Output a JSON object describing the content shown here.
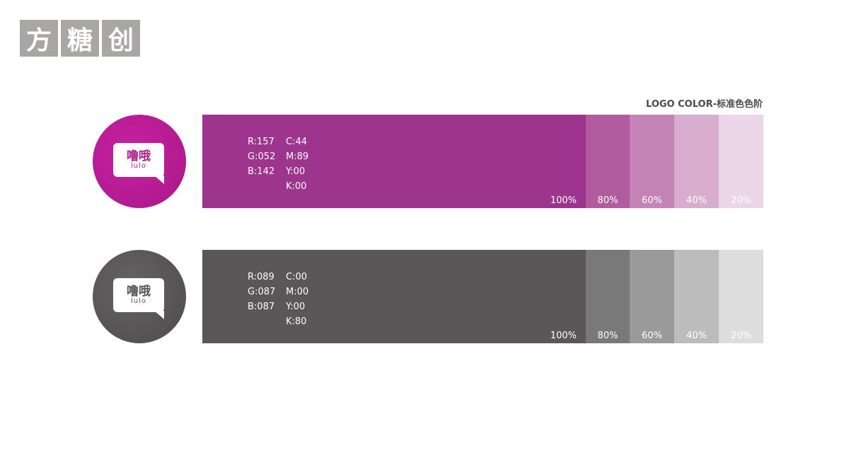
{
  "brand": {
    "chars": [
      "方",
      "糖",
      "创"
    ]
  },
  "title": "LOGO COLOR-标准色色阶",
  "logo": {
    "line1": "噜哦",
    "line2": "lulo"
  },
  "rows": [
    {
      "name": "magenta",
      "color": "#9d348e",
      "rgb": [
        "R:157",
        "G:052",
        "B:142"
      ],
      "cmyk": [
        "C:44",
        "M:89",
        "Y:00",
        "K:00"
      ],
      "tints": [
        {
          "label": "100%",
          "color": "#9d348e"
        },
        {
          "label": "80%",
          "color": "#b05c9f"
        },
        {
          "label": "60%",
          "color": "#c484b5"
        },
        {
          "label": "40%",
          "color": "#d8adcd"
        },
        {
          "label": "20%",
          "color": "#ebd6e8"
        }
      ]
    },
    {
      "name": "gray",
      "color": "#595757",
      "rgb": [
        "R:089",
        "G:087",
        "B:087"
      ],
      "cmyk": [
        "C:00",
        "M:00",
        "Y:00",
        "K:80"
      ],
      "tints": [
        {
          "label": "100%",
          "color": "#595757"
        },
        {
          "label": "80%",
          "color": "#7a7979"
        },
        {
          "label": "60%",
          "color": "#9b9a9a"
        },
        {
          "label": "40%",
          "color": "#bdbcbc"
        },
        {
          "label": "20%",
          "color": "#dedddd"
        }
      ]
    }
  ]
}
